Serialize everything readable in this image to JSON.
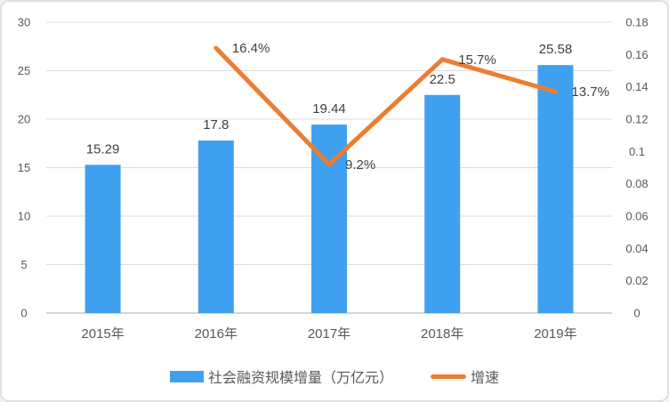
{
  "chart_data": {
    "type": "combo",
    "title": "",
    "categories": [
      "2015年",
      "2016年",
      "2017年",
      "2018年",
      "2019年"
    ],
    "series": [
      {
        "name": "社会融资规模增量（万亿元）",
        "type": "bar",
        "axis": "left",
        "color": "#3fa0f0",
        "values": [
          15.29,
          17.8,
          19.44,
          22.5,
          25.58
        ],
        "labels": [
          "15.29",
          "17.8",
          "19.44",
          "22.5",
          "25.58"
        ]
      },
      {
        "name": "增速",
        "type": "line",
        "axis": "right",
        "color": "#ed7d31",
        "values": [
          null,
          0.164,
          0.092,
          0.157,
          0.137
        ],
        "labels": [
          "",
          "16.4%",
          "9.2%",
          "15.7%",
          "13.7%"
        ]
      }
    ],
    "left_axis": {
      "min": 0,
      "max": 30,
      "step": 5,
      "ticks": [
        "30",
        "25",
        "20",
        "15",
        "10",
        "5",
        "0"
      ]
    },
    "right_axis": {
      "min": 0,
      "max": 0.18,
      "step": 0.02,
      "ticks": [
        "0.18",
        "0.16",
        "0.14",
        "0.12",
        "0.1",
        "0.08",
        "0.06",
        "0.04",
        "0.02",
        "0"
      ]
    },
    "grid": true,
    "legend_position": "bottom",
    "theme": {
      "grid_color": "#dcdcdc",
      "axis_line_color": "#c8c8c8",
      "tick_text_color": "#595959",
      "data_label_color": "#404040",
      "background": "#ffffff",
      "border_color": "#e0e0e0"
    }
  }
}
